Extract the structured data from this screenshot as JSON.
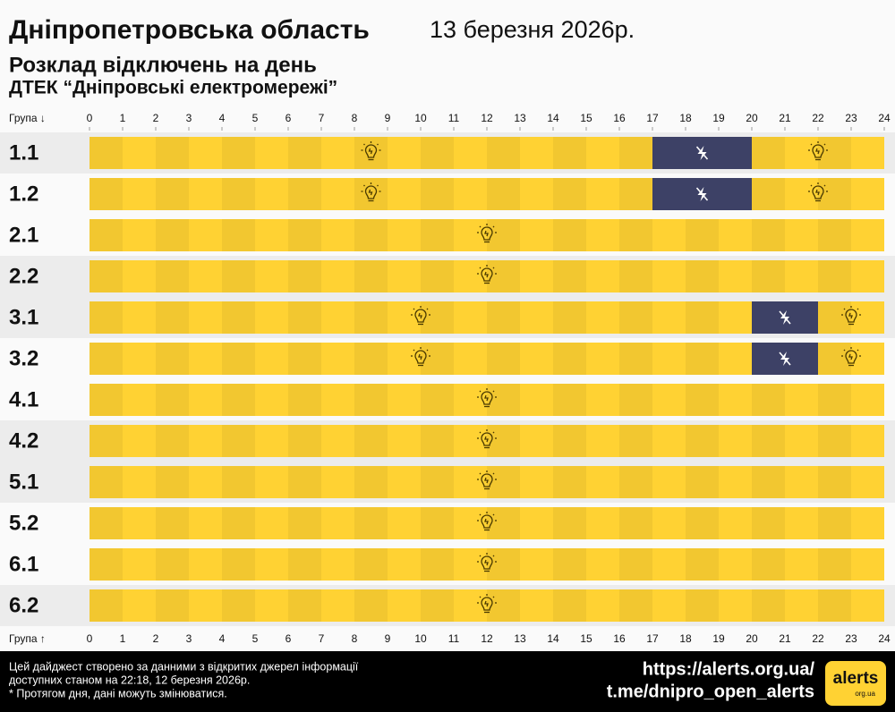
{
  "chart_data": {
    "type": "timeline",
    "title": "Дніпропетровська область",
    "date": "13 березня 2026р.",
    "subtitle": [
      "Розклад відключень на день",
      "ДТЕК “Дніпровські електромережі”"
    ],
    "axis_label_top": "Група ↓",
    "axis_label_bottom": "Група ↑",
    "xlim": [
      0,
      24
    ],
    "xticks": [
      0,
      1,
      2,
      3,
      4,
      5,
      6,
      7,
      8,
      9,
      10,
      11,
      12,
      13,
      14,
      15,
      16,
      17,
      18,
      19,
      20,
      21,
      22,
      23,
      24
    ],
    "on_color": "#ffd233",
    "off_color": "#3d4166",
    "groups": [
      {
        "name": "1.1",
        "outages": [
          [
            17,
            20
          ]
        ]
      },
      {
        "name": "1.2",
        "outages": [
          [
            17,
            20
          ]
        ]
      },
      {
        "name": "2.1",
        "outages": []
      },
      {
        "name": "2.2",
        "outages": []
      },
      {
        "name": "3.1",
        "outages": [
          [
            20,
            22
          ]
        ]
      },
      {
        "name": "3.2",
        "outages": [
          [
            20,
            22
          ]
        ]
      },
      {
        "name": "4.1",
        "outages": []
      },
      {
        "name": "4.2",
        "outages": []
      },
      {
        "name": "5.1",
        "outages": []
      },
      {
        "name": "5.2",
        "outages": []
      },
      {
        "name": "6.1",
        "outages": []
      },
      {
        "name": "6.2",
        "outages": []
      }
    ],
    "footer": [
      "Цей дайджест створено за данними з відкритих джерел інформації",
      "доступних станом на 22:18, 12 березня 2026р.",
      "* Протягом дня, дані можуть змінюватися."
    ],
    "links": [
      "https://alerts.org.ua/",
      "t.me/dnipro_open_alerts"
    ],
    "logo": [
      "alerts",
      "org.ua"
    ]
  }
}
